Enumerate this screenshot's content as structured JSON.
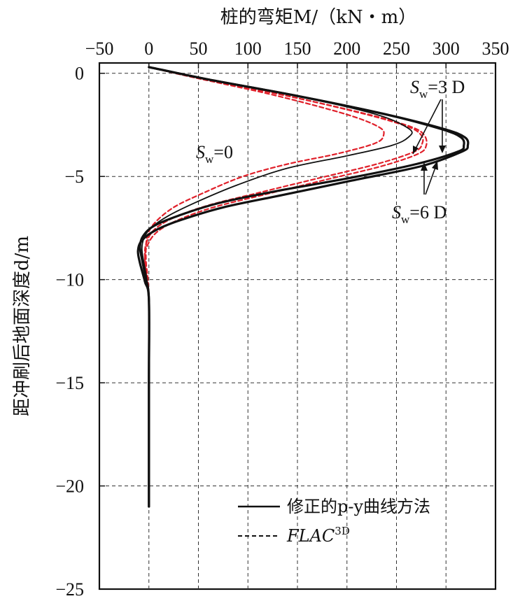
{
  "chart_data": {
    "type": "line",
    "title": "",
    "xlabel": "桩的弯矩M/（kN・m）",
    "ylabel": "距冲刷后地面深度d/m",
    "xlim": [
      -50,
      350
    ],
    "ylim": [
      -25,
      0.5
    ],
    "xticks": [
      -50,
      0,
      50,
      100,
      150,
      200,
      250,
      300,
      350
    ],
    "yticks": [
      0,
      -5,
      -10,
      -15,
      -20,
      -25
    ],
    "grid": true,
    "legend_position": "bottom-right",
    "series": [
      {
        "name": "修正的p-y曲线方法",
        "group": "Sw=0",
        "style": "solid-thin",
        "color": "#111111",
        "x": [
          0,
          60,
          150,
          230,
          263,
          262,
          245,
          200,
          140,
          90,
          50,
          20,
          2,
          -5,
          -7,
          -5,
          -2,
          0,
          0,
          0
        ],
        "y": [
          0.3,
          -0.3,
          -1.1,
          -2.0,
          -2.7,
          -3.1,
          -3.5,
          -4.0,
          -4.6,
          -5.4,
          -6.2,
          -6.9,
          -7.5,
          -8.0,
          -8.5,
          -9.2,
          -10.0,
          -11.0,
          -15.0,
          -21.0
        ]
      },
      {
        "name": "修正的p-y曲线方法",
        "group": "Sw=3D",
        "style": "solid-thick",
        "color": "#111111",
        "x": [
          0,
          60,
          150,
          240,
          295,
          315,
          318,
          312,
          270,
          200,
          130,
          70,
          30,
          5,
          -6,
          -9,
          -7,
          -3,
          0,
          0,
          0
        ],
        "y": [
          0.3,
          -0.3,
          -1.1,
          -2.0,
          -2.7,
          -3.1,
          -3.5,
          -3.8,
          -4.4,
          -5.1,
          -5.7,
          -6.3,
          -6.9,
          -7.4,
          -7.9,
          -8.4,
          -9.0,
          -10.0,
          -11.0,
          -15.0,
          -21.0
        ]
      },
      {
        "name": "修正的p-y曲线方法",
        "group": "Sw=6D",
        "style": "solid-thick",
        "color": "#111111",
        "x": [
          0,
          60,
          150,
          240,
          298,
          319,
          322,
          316,
          275,
          205,
          135,
          75,
          33,
          7,
          -7,
          -11,
          -9,
          -4,
          0,
          0,
          0
        ],
        "y": [
          0.3,
          -0.3,
          -1.1,
          -2.0,
          -2.7,
          -3.1,
          -3.5,
          -3.8,
          -4.5,
          -5.2,
          -5.9,
          -6.5,
          -7.1,
          -7.6,
          -8.1,
          -8.6,
          -9.2,
          -10.1,
          -11.0,
          -15.0,
          -21.0
        ]
      },
      {
        "name": "FLAC3D",
        "group": "Sw=0",
        "style": "dashed",
        "color": "#e0202a",
        "x": [
          0,
          55,
          130,
          200,
          232,
          237,
          228,
          190,
          140,
          95,
          55,
          25,
          5,
          -2,
          -3,
          -1,
          0,
          0
        ],
        "y": [
          0.3,
          -0.3,
          -1.1,
          -2.0,
          -2.6,
          -3.0,
          -3.4,
          -3.9,
          -4.4,
          -5.0,
          -5.8,
          -6.5,
          -7.3,
          -8.0,
          -9.0,
          -10.0,
          -11.0,
          -11.8
        ]
      },
      {
        "name": "FLAC3D",
        "group": "Sw=3D",
        "style": "dashed",
        "color": "#e0202a",
        "x": [
          0,
          55,
          140,
          220,
          262,
          275,
          276,
          268,
          230,
          170,
          110,
          60,
          25,
          5,
          -3,
          -4,
          -2,
          0,
          0
        ],
        "y": [
          0.3,
          -0.3,
          -1.1,
          -2.0,
          -2.6,
          -3.0,
          -3.4,
          -3.8,
          -4.4,
          -5.1,
          -5.8,
          -6.4,
          -7.0,
          -7.6,
          -8.3,
          -9.0,
          -10.0,
          -11.0,
          -11.8
        ]
      },
      {
        "name": "FLAC3D",
        "group": "Sw=6D",
        "style": "dashed",
        "color": "#e0202a",
        "x": [
          0,
          55,
          140,
          222,
          265,
          278,
          280,
          272,
          235,
          175,
          115,
          65,
          30,
          8,
          -2,
          -4,
          -2,
          0,
          0
        ],
        "y": [
          0.3,
          -0.3,
          -1.1,
          -2.0,
          -2.6,
          -3.0,
          -3.5,
          -3.9,
          -4.5,
          -5.2,
          -5.9,
          -6.5,
          -7.1,
          -7.7,
          -8.4,
          -9.1,
          -10.0,
          -11.0,
          -11.8
        ]
      }
    ],
    "annotations": [
      {
        "text_main": "S",
        "text_sub": "w",
        "text_rest": "=0",
        "id": "sw0"
      },
      {
        "text_main": "S",
        "text_sub": "w",
        "text_rest": "=3 D",
        "id": "sw3d"
      },
      {
        "text_main": "S",
        "text_sub": "w",
        "text_rest": "=6 D",
        "id": "sw6d"
      }
    ],
    "legend": [
      {
        "label": "修正的p-y曲线方法",
        "style": "solid",
        "color": "#111111"
      },
      {
        "label_main": "FLAC",
        "label_sup": "3D",
        "style": "dashed",
        "color": "#111111"
      }
    ]
  }
}
